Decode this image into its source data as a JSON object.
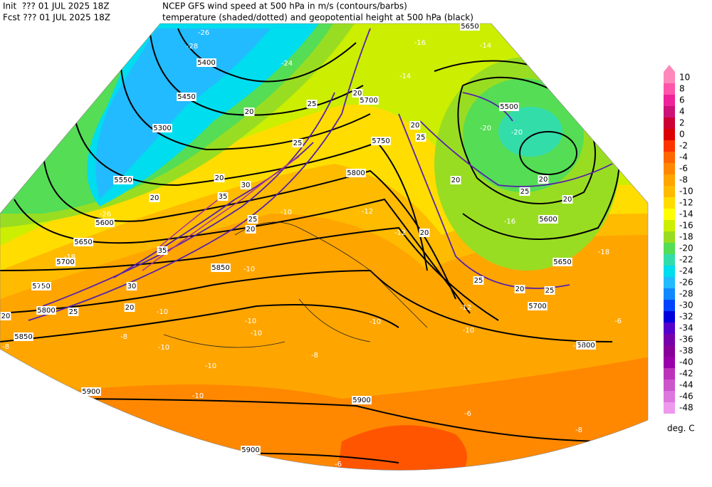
{
  "header": {
    "init": "Init  ??? 01 JUL 2025 18Z",
    "fcst": "Fcst ??? 01 JUL 2025 18Z",
    "title1": "NCEP GFS wind speed at 500 hPa in m/s (contours/barbs)",
    "title2": "temperature (shaded/dotted) and geopotential height at 500 hPa (black)"
  },
  "colorbar": {
    "values": [
      10,
      8,
      6,
      4,
      2,
      0,
      -2,
      -4,
      -6,
      -8,
      -10,
      -12,
      -14,
      -16,
      -18,
      -20,
      -22,
      -24,
      -26,
      -28,
      -30,
      -32,
      -34,
      -36,
      -38,
      -40,
      -42,
      -44,
      -46,
      -48
    ],
    "colors": [
      "#ff88bb",
      "#ff55aa",
      "#ee2299",
      "#cc1177",
      "#cc0033",
      "#dd0000",
      "#ff3300",
      "#ff6600",
      "#ff8800",
      "#ffa500",
      "#ffbb00",
      "#ffdd00",
      "#ffff00",
      "#ccee00",
      "#99dd22",
      "#55dd55",
      "#33ddaa",
      "#00ddee",
      "#22bbff",
      "#1188ff",
      "#0044ff",
      "#0000dd",
      "#5500cc",
      "#7700aa",
      "#880099",
      "#9900aa",
      "#bb33bb",
      "#cc55cc",
      "#dd77dd",
      "#ee99ee"
    ],
    "unit": "deg. C"
  },
  "map": {
    "height_labels": [
      "5650",
      "5400",
      "5450",
      "5300",
      "5550",
      "5600",
      "5650",
      "5700",
      "5750",
      "5800",
      "5850",
      "5700",
      "5750",
      "5800",
      "5850",
      "5500",
      "5600",
      "5650",
      "5700",
      "5800",
      "5900",
      "5900",
      "5900"
    ],
    "wind_labels": [
      "20",
      "25",
      "20",
      "25",
      "20",
      "30",
      "35",
      "20",
      "25",
      "20",
      "35",
      "30",
      "25",
      "20",
      "20",
      "20",
      "25",
      "20",
      "20",
      "20",
      "25",
      "20",
      "20",
      "25",
      "25"
    ],
    "temp_labels": [
      "-26",
      "-28",
      "-24",
      "-26",
      "-18",
      "-10",
      "-8",
      "-16",
      "-14",
      "-14",
      "-20",
      "-20",
      "-12",
      "-12",
      "-10",
      "-10",
      "-10",
      "-10",
      "-10",
      "-10",
      "-12",
      "-16",
      "-18",
      "-8",
      "-10",
      "-10",
      "-10",
      "-8",
      "-10",
      "-6",
      "-6",
      "-8",
      "-12",
      "-10",
      "-6",
      "-10"
    ]
  }
}
